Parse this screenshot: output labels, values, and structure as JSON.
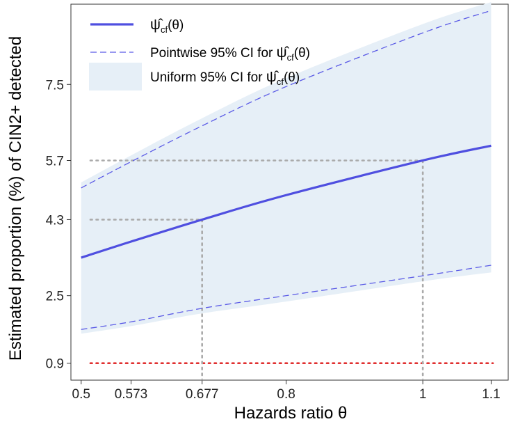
{
  "chart_data": {
    "type": "line",
    "xlabel": "Hazards ratio θ",
    "ylabel": "Estimated proportion (%) of CIN2+ detected",
    "x_ticks": [
      0.5,
      0.573,
      0.677,
      0.8,
      1,
      1.1
    ],
    "x_tick_labels": [
      "0.5",
      "0.573",
      "0.677",
      "0.8",
      "1",
      "1.1"
    ],
    "y_ticks": [
      0.9,
      2.5,
      4.3,
      5.7,
      7.5
    ],
    "y_tick_labels": [
      "0.9",
      "2.5",
      "4.3",
      "5.7",
      "7.5"
    ],
    "xlim": [
      0.485,
      1.125
    ],
    "ylim": [
      0.5,
      9.4
    ],
    "series": [
      {
        "name": "ψ̂_cf(θ)",
        "style": "solid",
        "color": "#4f4fe0",
        "x": [
          0.5,
          0.573,
          0.677,
          0.8,
          1.0,
          1.1
        ],
        "y": [
          3.4,
          3.78,
          4.3,
          4.88,
          5.7,
          6.05
        ]
      },
      {
        "name": "Pointwise 95% CI for ψ̂_cf(θ)",
        "style": "dashed",
        "color": "#5a5ae6",
        "upper": {
          "x": [
            0.5,
            0.573,
            0.677,
            0.8,
            1.0,
            1.1
          ],
          "y": [
            5.05,
            5.67,
            6.52,
            7.45,
            8.72,
            9.25
          ]
        },
        "lower": {
          "x": [
            0.5,
            0.573,
            0.677,
            0.8,
            1.0,
            1.1
          ],
          "y": [
            1.7,
            1.88,
            2.2,
            2.5,
            2.97,
            3.22
          ]
        }
      },
      {
        "name": "Uniform 95% CI for ψ̂_cf(θ)",
        "style": "band",
        "color": "#e6eff7",
        "upper": {
          "x": [
            0.5,
            0.573,
            0.677,
            0.8,
            1.0,
            1.1
          ],
          "y": [
            5.18,
            5.82,
            6.7,
            7.65,
            8.93,
            9.45
          ]
        },
        "lower": {
          "x": [
            0.5,
            0.573,
            0.677,
            0.8,
            1.0,
            1.1
          ],
          "y": [
            1.6,
            1.78,
            2.08,
            2.36,
            2.84,
            3.05
          ]
        }
      }
    ],
    "reference_lines": [
      {
        "kind": "horizontal",
        "y": 0.9,
        "color": "#e03030",
        "style": "dotted"
      },
      {
        "kind": "horizontal",
        "y": 4.3,
        "x_to": 0.677,
        "color": "#aaaaaa",
        "style": "dotted"
      },
      {
        "kind": "horizontal",
        "y": 5.7,
        "x_to": 1.0,
        "color": "#aaaaaa",
        "style": "dotted"
      },
      {
        "kind": "vertical",
        "x": 0.677,
        "y_to": 4.3,
        "color": "#aaaaaa",
        "style": "dotted"
      },
      {
        "kind": "vertical",
        "x": 1.0,
        "y_to": 5.7,
        "color": "#aaaaaa",
        "style": "dotted"
      }
    ],
    "legend": {
      "position": "top-left",
      "items": [
        {
          "label_prefix": "",
          "key": "estimate"
        },
        {
          "label_prefix": "Pointwise 95% CI for ",
          "key": "pointwise"
        },
        {
          "label_prefix": "Uniform 95% CI for ",
          "key": "uniform"
        }
      ],
      "psi_symbol": "ψ̂",
      "psi_subscript": "cf",
      "psi_arg": "(θ)"
    },
    "grid": false
  }
}
